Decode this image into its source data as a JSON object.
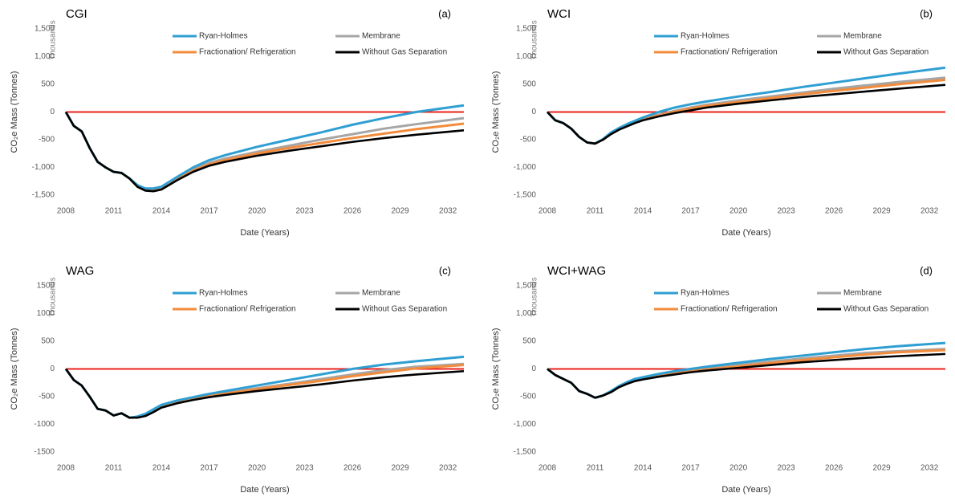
{
  "chart_data": [
    {
      "type": "line",
      "title": "CGI",
      "panel_label": "(a)",
      "ylabel": "CO₂e Mass (Tonnes)",
      "yunit": "Thousands",
      "xlabel": "Date (Years)",
      "x": [
        2008,
        2008.5,
        2009,
        2009.5,
        2010,
        2010.5,
        2011,
        2011.5,
        2012,
        2012.5,
        2013,
        2013.5,
        2014,
        2015,
        2016,
        2017,
        2018,
        2020,
        2022,
        2024,
        2026,
        2028,
        2030,
        2033
      ],
      "series": [
        {
          "name": "Ryan-Holmes",
          "color": "#2f9fd3",
          "values": [
            0,
            -250,
            -350,
            -650,
            -900,
            -1000,
            -1080,
            -1100,
            -1200,
            -1320,
            -1380,
            -1380,
            -1350,
            -1170,
            -1000,
            -870,
            -780,
            -630,
            -500,
            -370,
            -230,
            -110,
            0,
            120
          ]
        },
        {
          "name": "Membrane",
          "color": "#a6a6a6",
          "values": [
            0,
            -250,
            -350,
            -650,
            -900,
            -1000,
            -1080,
            -1100,
            -1200,
            -1340,
            -1400,
            -1410,
            -1380,
            -1200,
            -1040,
            -920,
            -840,
            -720,
            -610,
            -500,
            -400,
            -300,
            -220,
            -110
          ]
        },
        {
          "name": "Fractionation/ Refrigeration",
          "color": "#f28c3c",
          "values": [
            0,
            -250,
            -350,
            -650,
            -900,
            -1000,
            -1080,
            -1100,
            -1200,
            -1345,
            -1410,
            -1420,
            -1390,
            -1215,
            -1060,
            -945,
            -870,
            -750,
            -650,
            -560,
            -470,
            -390,
            -310,
            -210
          ]
        },
        {
          "name": "Without Gas Separation",
          "color": "#000000",
          "values": [
            0,
            -250,
            -350,
            -650,
            -900,
            -1000,
            -1080,
            -1100,
            -1200,
            -1350,
            -1420,
            -1430,
            -1400,
            -1230,
            -1080,
            -970,
            -900,
            -790,
            -700,
            -620,
            -540,
            -470,
            -410,
            -330
          ]
        }
      ],
      "reference_line": {
        "value": 0,
        "color": "#e8221b"
      },
      "xlim": [
        2008,
        2033
      ],
      "xticks": [
        2008,
        2011,
        2014,
        2017,
        2020,
        2023,
        2026,
        2029,
        2032
      ],
      "ylim": [
        -1500,
        1500
      ],
      "yticks": [
        {
          "value": -1500,
          "label": "-1,500"
        },
        {
          "value": -1000,
          "label": "-1,000"
        },
        -500,
        0,
        500,
        {
          "value": 1000,
          "label": "1,000"
        },
        {
          "value": 1500,
          "label": "1,500"
        }
      ]
    },
    {
      "type": "line",
      "title": "WCI",
      "panel_label": "(b)",
      "ylabel": "CO₂e Mass (Tonnes)",
      "yunit": "Thousands",
      "xlabel": "Date (Years)",
      "x": [
        2008,
        2008.5,
        2009,
        2009.5,
        2010,
        2010.5,
        2011,
        2011.5,
        2012,
        2012.5,
        2013,
        2013.5,
        2014,
        2015,
        2016,
        2017,
        2018,
        2020,
        2022,
        2024,
        2026,
        2028,
        2030,
        2033
      ],
      "series": [
        {
          "name": "Ryan-Holmes",
          "color": "#2f9fd3",
          "values": [
            0,
            -150,
            -200,
            -300,
            -450,
            -550,
            -570,
            -490,
            -370,
            -290,
            -220,
            -160,
            -100,
            0,
            80,
            140,
            190,
            280,
            360,
            450,
            530,
            610,
            690,
            800
          ]
        },
        {
          "name": "Membrane",
          "color": "#a6a6a6",
          "values": [
            0,
            -150,
            -200,
            -300,
            -450,
            -550,
            -570,
            -495,
            -385,
            -305,
            -240,
            -180,
            -125,
            -50,
            20,
            80,
            130,
            210,
            280,
            350,
            420,
            480,
            540,
            620
          ]
        },
        {
          "name": "Fractionation/ Refrigeration",
          "color": "#f28c3c",
          "values": [
            0,
            -150,
            -200,
            -300,
            -450,
            -550,
            -570,
            -497,
            -392,
            -312,
            -248,
            -188,
            -135,
            -62,
            5,
            60,
            110,
            180,
            250,
            320,
            380,
            440,
            500,
            580
          ]
        },
        {
          "name": "Without Gas Separation",
          "color": "#000000",
          "values": [
            0,
            -150,
            -200,
            -300,
            -450,
            -550,
            -570,
            -500,
            -400,
            -320,
            -260,
            -200,
            -150,
            -80,
            -20,
            30,
            80,
            150,
            210,
            270,
            320,
            370,
            420,
            490
          ]
        }
      ],
      "reference_line": {
        "value": 0,
        "color": "#e8221b"
      },
      "xlim": [
        2008,
        2033
      ],
      "xticks": [
        2008,
        2011,
        2014,
        2017,
        2020,
        2023,
        2026,
        2029,
        2032
      ],
      "ylim": [
        -1500,
        1500
      ],
      "yticks": [
        {
          "value": -1500,
          "label": "-1,500"
        },
        {
          "value": -1000,
          "label": "-1,000"
        },
        -500,
        0,
        500,
        {
          "value": 1000,
          "label": "1,000"
        },
        {
          "value": 1500,
          "label": "1,500"
        }
      ]
    },
    {
      "type": "line",
      "title": "WAG",
      "panel_label": "(c)",
      "ylabel": "CO₂e Mass (Tonnes)",
      "yunit": "Thousands",
      "xlabel": "Date (Years)",
      "x": [
        2008,
        2008.5,
        2009,
        2009.5,
        2010,
        2010.5,
        2011,
        2011.5,
        2012,
        2012.5,
        2013,
        2013.5,
        2014,
        2015,
        2016,
        2017,
        2018,
        2020,
        2022,
        2024,
        2026,
        2028,
        2030,
        2033
      ],
      "series": [
        {
          "name": "Ryan-Holmes",
          "color": "#2f9fd3",
          "values": [
            0,
            -200,
            -300,
            -500,
            -720,
            -750,
            -840,
            -800,
            -880,
            -860,
            -810,
            -730,
            -650,
            -570,
            -510,
            -450,
            -400,
            -300,
            -200,
            -100,
            0,
            80,
            140,
            220
          ]
        },
        {
          "name": "Membrane",
          "color": "#a6a6a6",
          "values": [
            0,
            -200,
            -300,
            -500,
            -720,
            -750,
            -840,
            -800,
            -880,
            -870,
            -830,
            -755,
            -675,
            -595,
            -535,
            -480,
            -435,
            -350,
            -270,
            -185,
            -100,
            -20,
            40,
            90
          ]
        },
        {
          "name": "Fractionation/ Refrigeration",
          "color": "#f28c3c",
          "values": [
            0,
            -200,
            -300,
            -500,
            -720,
            -750,
            -840,
            -800,
            -880,
            -875,
            -840,
            -765,
            -690,
            -605,
            -545,
            -490,
            -448,
            -365,
            -290,
            -215,
            -130,
            -60,
            10,
            70
          ]
        },
        {
          "name": "Without Gas Separation",
          "color": "#000000",
          "values": [
            0,
            -200,
            -300,
            -500,
            -720,
            -750,
            -840,
            -800,
            -880,
            -880,
            -850,
            -780,
            -700,
            -620,
            -560,
            -510,
            -470,
            -400,
            -340,
            -280,
            -210,
            -150,
            -100,
            -40
          ]
        }
      ],
      "reference_line": {
        "value": 0,
        "color": "#e8221b"
      },
      "xlim": [
        2008,
        2033
      ],
      "xticks": [
        2008,
        2011,
        2014,
        2017,
        2020,
        2023,
        2026,
        2029,
        2032
      ],
      "ylim": [
        -1500,
        1500
      ],
      "yticks": [
        -1500,
        -1000,
        -500,
        0,
        500,
        1000,
        1500
      ]
    },
    {
      "type": "line",
      "title": "WCI+WAG",
      "panel_label": "(d)",
      "ylabel": "CO₂e Mass (Tonnes)",
      "yunit": "Thousands",
      "xlabel": "Date (Years)",
      "x": [
        2008,
        2008.5,
        2009,
        2009.5,
        2010,
        2010.5,
        2011,
        2011.5,
        2012,
        2012.5,
        2013,
        2013.5,
        2014,
        2015,
        2016,
        2017,
        2018,
        2020,
        2022,
        2024,
        2026,
        2028,
        2030,
        2033
      ],
      "series": [
        {
          "name": "Ryan-Holmes",
          "color": "#2f9fd3",
          "values": [
            0,
            -110,
            -180,
            -250,
            -400,
            -450,
            -520,
            -480,
            -400,
            -310,
            -240,
            -180,
            -150,
            -90,
            -40,
            0,
            40,
            110,
            180,
            240,
            300,
            360,
            410,
            470
          ]
        },
        {
          "name": "Membrane",
          "color": "#a6a6a6",
          "values": [
            0,
            -110,
            -180,
            -250,
            -400,
            -450,
            -520,
            -480,
            -410,
            -320,
            -255,
            -200,
            -170,
            -115,
            -70,
            -30,
            10,
            70,
            130,
            190,
            240,
            290,
            320,
            360
          ]
        },
        {
          "name": "Fractionation/ Refrigeration",
          "color": "#f28c3c",
          "values": [
            0,
            -110,
            -180,
            -250,
            -400,
            -450,
            -520,
            -480,
            -415,
            -325,
            -262,
            -210,
            -180,
            -125,
            -82,
            -45,
            -10,
            45,
            105,
            160,
            210,
            260,
            300,
            340
          ]
        },
        {
          "name": "Without Gas Separation",
          "color": "#000000",
          "values": [
            0,
            -110,
            -180,
            -250,
            -400,
            -450,
            -520,
            -480,
            -420,
            -330,
            -270,
            -220,
            -190,
            -140,
            -100,
            -60,
            -30,
            20,
            70,
            120,
            160,
            200,
            230,
            270
          ]
        }
      ],
      "reference_line": {
        "value": 0,
        "color": "#e8221b"
      },
      "xlim": [
        2008,
        2033
      ],
      "xticks": [
        2008,
        2011,
        2014,
        2017,
        2020,
        2023,
        2026,
        2029,
        2032
      ],
      "ylim": [
        -1500,
        1500
      ],
      "yticks": [
        {
          "value": -1500,
          "label": "-1,500"
        },
        {
          "value": -1000,
          "label": "-1,000"
        },
        -500,
        0,
        500,
        {
          "value": 1000,
          "label": "1,000"
        },
        {
          "value": 1500,
          "label": "1,500"
        }
      ]
    }
  ]
}
